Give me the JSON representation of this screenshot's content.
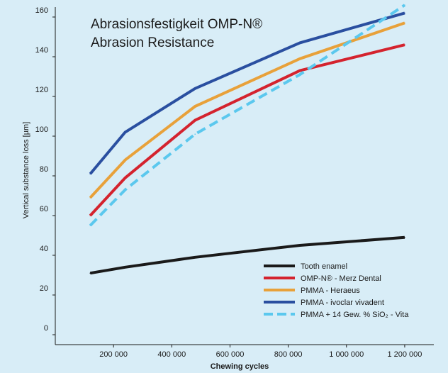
{
  "chart_data": {
    "type": "line",
    "title": "Abrasionsfestigkeit OMP-N®",
    "subtitle": "Abrasion Resistance",
    "xlabel": "Chewing cycles",
    "ylabel": "Vertical substance loss [µm]",
    "xlim": [
      0,
      1300000
    ],
    "x_ticks": [
      200000,
      400000,
      600000,
      800000,
      1000000,
      1200000
    ],
    "x_tick_labels": [
      "200 000",
      "400 000",
      "600 000",
      "800 000",
      "1 000 000",
      "1 200 000"
    ],
    "y_tick_labels": [
      "0",
      "20",
      "40",
      "60",
      "80",
      "100",
      "120",
      "140",
      "160"
    ],
    "y_tick_values": [
      0,
      20,
      40,
      60,
      80,
      100,
      120,
      140,
      160
    ],
    "y_tick_positions": [
      0,
      20,
      40,
      60,
      80,
      100,
      120,
      140,
      160
    ],
    "ylim": [
      -5,
      165
    ],
    "grid": false,
    "legend_position": "bottom-right",
    "series": [
      {
        "name": "Tooth enamel",
        "color": "#1a1a1a",
        "dash": false,
        "x": [
          120000,
          240000,
          480000,
          840000,
          1200000
        ],
        "y": [
          31,
          34,
          39,
          45,
          49
        ]
      },
      {
        "name": "OMP-N® - Merz Dental",
        "color": "#d4232e",
        "dash": false,
        "x": [
          120000,
          240000,
          480000,
          840000,
          1200000
        ],
        "y": [
          60,
          79,
          108,
          133,
          146
        ]
      },
      {
        "name": "PMMA - Heraeus",
        "color": "#e8a13a",
        "dash": false,
        "x": [
          120000,
          240000,
          480000,
          840000,
          1200000
        ],
        "y": [
          69,
          88,
          115,
          139,
          157
        ]
      },
      {
        "name": "PMMA - ivoclar vivadent",
        "color": "#2a4fa0",
        "dash": false,
        "x": [
          120000,
          240000,
          480000,
          840000,
          1200000
        ],
        "y": [
          81,
          102,
          124,
          147,
          162
        ]
      },
      {
        "name": "PMMA + 14 Gew. % SiO₂ - Vita",
        "color": "#5bc8ee",
        "dash": true,
        "x": [
          120000,
          240000,
          480000,
          840000,
          1200000
        ],
        "y": [
          55,
          73,
          101,
          131,
          166
        ]
      }
    ]
  }
}
